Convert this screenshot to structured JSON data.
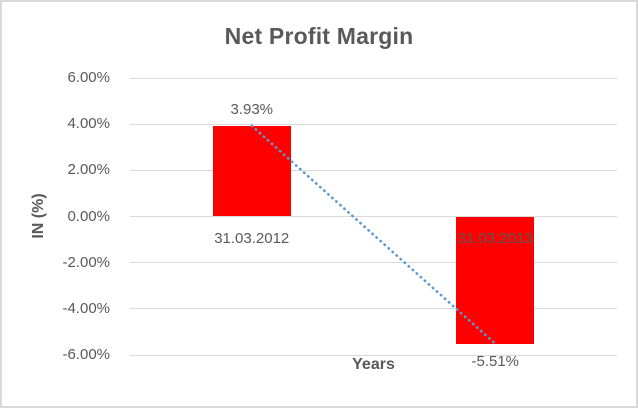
{
  "chart_data": {
    "type": "bar",
    "title": "Net Profit Margin",
    "xlabel": "Years",
    "ylabel": "IN (%)",
    "categories": [
      "31.03.2012",
      "31.03.2013"
    ],
    "values": [
      3.93,
      -5.51
    ],
    "data_labels": [
      "3.93%",
      "-5.51%"
    ],
    "ylim": [
      -6,
      6
    ],
    "ytick_step": 2,
    "ytick_labels": [
      "6.00%",
      "4.00%",
      "2.00%",
      "0.00%",
      "-2.00%",
      "-4.00%",
      "-6.00%"
    ],
    "grid": true,
    "legend": "none",
    "bar_color": "#ff0000",
    "trendline": {
      "style": "dotted",
      "color": "#5b9bd5",
      "from_point": {
        "category_index": 0,
        "value": 3.93
      },
      "to_point": {
        "category_index": 1,
        "value": -5.51
      }
    },
    "colors": {
      "text": "#595959",
      "gridline": "#d9d9d9",
      "border": "#d9d9d9",
      "background": "#ffffff"
    }
  }
}
